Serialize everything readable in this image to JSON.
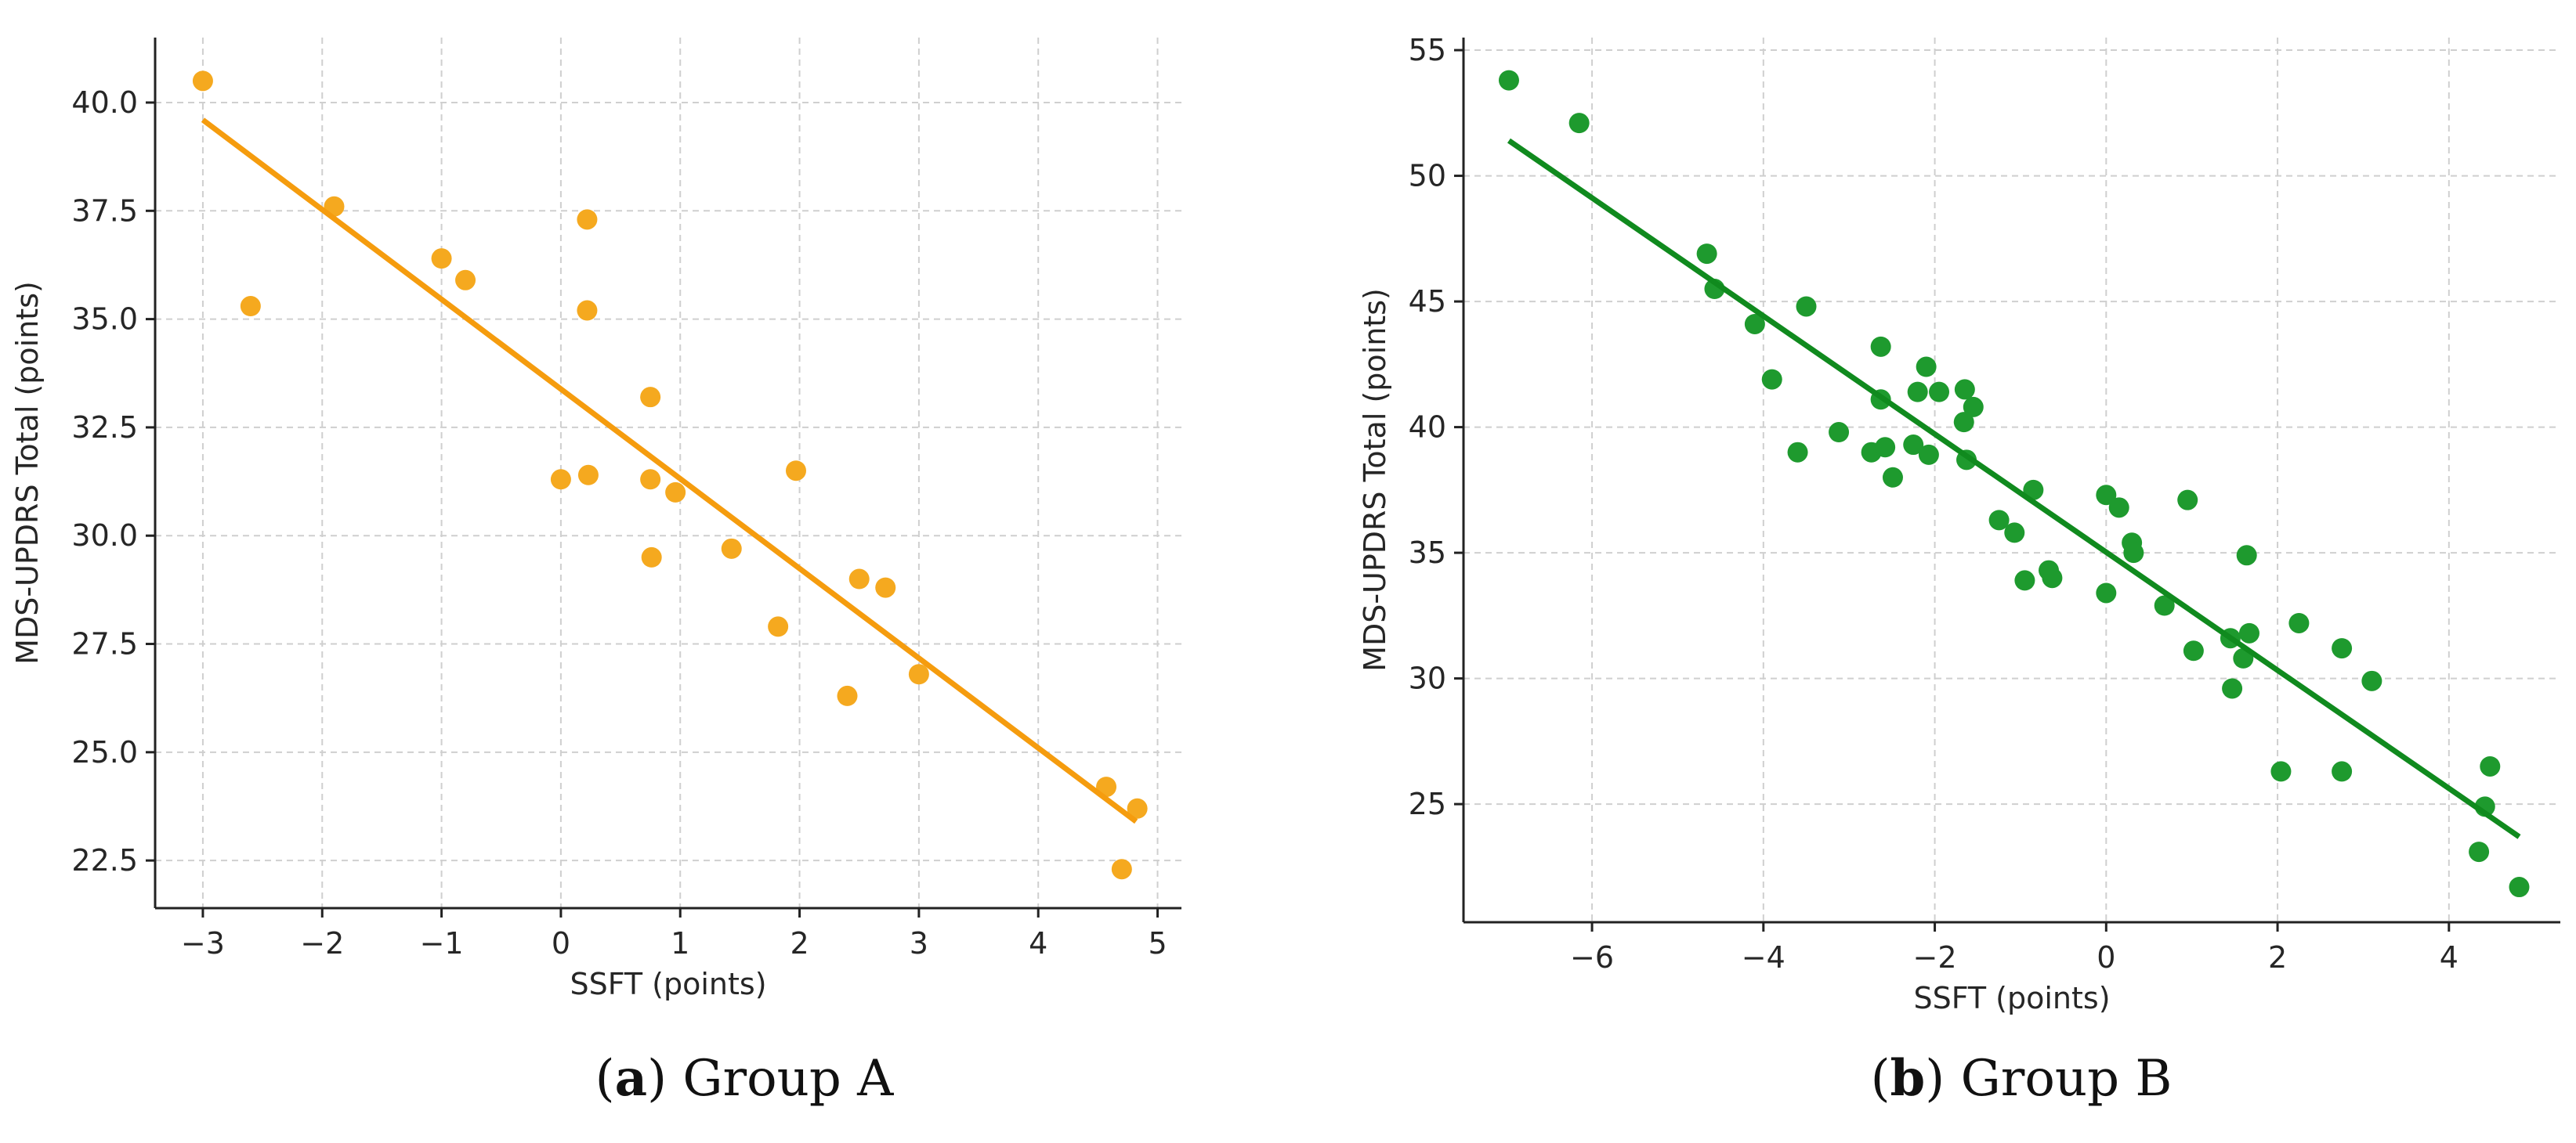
{
  "captions": [
    {
      "letter": "a",
      "text": "Group A"
    },
    {
      "letter": "b",
      "text": "Group B"
    }
  ],
  "chart_data": [
    {
      "type": "scatter",
      "xlabel": "SSFT (points)",
      "ylabel": "MDS-UPDRS Total (points)",
      "xlim": [
        -3.4,
        5.2
      ],
      "ylim": [
        21.4,
        41.5
      ],
      "xticks": [
        -3,
        -2,
        -1,
        0,
        1,
        2,
        3,
        4,
        5
      ],
      "xtick_labels": [
        "−3",
        "−2",
        "−1",
        "0",
        "1",
        "2",
        "3",
        "4",
        "5"
      ],
      "yticks": [
        22.5,
        25.0,
        27.5,
        30.0,
        32.5,
        35.0,
        37.5,
        40.0
      ],
      "ytick_labels": [
        "22.5",
        "25.0",
        "27.5",
        "30.0",
        "32.5",
        "35.0",
        "37.5",
        "40.0"
      ],
      "grid": true,
      "color": "#f5a91f",
      "fit_color": "#f59c0e",
      "points": [
        [
          -3.0,
          40.5
        ],
        [
          -2.6,
          35.3
        ],
        [
          -1.9,
          37.6
        ],
        [
          -1.0,
          36.4
        ],
        [
          -0.8,
          35.9
        ],
        [
          0.0,
          31.3
        ],
        [
          0.22,
          37.3
        ],
        [
          0.22,
          35.2
        ],
        [
          0.23,
          31.4
        ],
        [
          0.75,
          33.2
        ],
        [
          0.75,
          31.3
        ],
        [
          0.76,
          29.5
        ],
        [
          0.96,
          31.0
        ],
        [
          1.43,
          29.7
        ],
        [
          1.82,
          27.9
        ],
        [
          1.97,
          31.5
        ],
        [
          2.4,
          26.3
        ],
        [
          2.5,
          29.0
        ],
        [
          2.72,
          28.8
        ],
        [
          3.0,
          26.8
        ],
        [
          4.57,
          24.2
        ],
        [
          4.7,
          22.3
        ],
        [
          4.83,
          23.7
        ]
      ],
      "fit": {
        "x": [
          -3.0,
          4.82
        ],
        "y": [
          39.6,
          23.4
        ]
      }
    },
    {
      "type": "scatter",
      "xlabel": "SSFT (points)",
      "ylabel": "MDS-UPDRS Total (points)",
      "xlim": [
        -7.5,
        5.3
      ],
      "ylim": [
        20.3,
        55.5
      ],
      "xticks": [
        -6,
        -4,
        -2,
        0,
        2,
        4
      ],
      "xtick_labels": [
        "−6",
        "−4",
        "−2",
        "0",
        "2",
        "4"
      ],
      "yticks": [
        25,
        30,
        35,
        40,
        45,
        50,
        55
      ],
      "ytick_labels": [
        "25",
        "30",
        "35",
        "40",
        "45",
        "50",
        "55"
      ],
      "grid": true,
      "color": "#1e9a2e",
      "fit_color": "#108a1e",
      "points": [
        [
          -6.97,
          53.8
        ],
        [
          -6.15,
          52.1
        ],
        [
          -4.66,
          46.9
        ],
        [
          -4.57,
          45.5
        ],
        [
          -4.1,
          44.1
        ],
        [
          -3.5,
          44.8
        ],
        [
          -3.9,
          41.9
        ],
        [
          -3.6,
          39.0
        ],
        [
          -3.12,
          39.8
        ],
        [
          -2.74,
          39.0
        ],
        [
          -2.63,
          43.2
        ],
        [
          -2.63,
          41.1
        ],
        [
          -2.58,
          39.2
        ],
        [
          -2.49,
          38.0
        ],
        [
          -2.25,
          39.3
        ],
        [
          -2.2,
          41.4
        ],
        [
          -2.1,
          42.4
        ],
        [
          -2.07,
          38.9
        ],
        [
          -1.95,
          41.4
        ],
        [
          -1.65,
          41.5
        ],
        [
          -1.66,
          40.2
        ],
        [
          -1.55,
          40.8
        ],
        [
          -1.63,
          38.7
        ],
        [
          -1.25,
          36.3
        ],
        [
          -1.07,
          35.8
        ],
        [
          -0.95,
          33.9
        ],
        [
          -0.85,
          37.5
        ],
        [
          -0.67,
          34.3
        ],
        [
          -0.63,
          34.0
        ],
        [
          0.0,
          37.3
        ],
        [
          0.0,
          33.4
        ],
        [
          0.15,
          36.8
        ],
        [
          0.3,
          35.4
        ],
        [
          0.32,
          35.0
        ],
        [
          0.68,
          32.9
        ],
        [
          0.95,
          37.1
        ],
        [
          1.02,
          31.1
        ],
        [
          1.45,
          31.6
        ],
        [
          1.47,
          29.6
        ],
        [
          1.6,
          30.8
        ],
        [
          1.64,
          34.9
        ],
        [
          1.67,
          31.8
        ],
        [
          2.04,
          26.3
        ],
        [
          2.25,
          32.2
        ],
        [
          2.75,
          31.2
        ],
        [
          2.75,
          26.3
        ],
        [
          3.1,
          29.9
        ],
        [
          4.35,
          23.1
        ],
        [
          4.42,
          24.9
        ],
        [
          4.48,
          26.5
        ],
        [
          4.82,
          21.7
        ]
      ],
      "fit": {
        "x": [
          -6.97,
          4.82
        ],
        "y": [
          51.4,
          23.7
        ]
      }
    }
  ]
}
